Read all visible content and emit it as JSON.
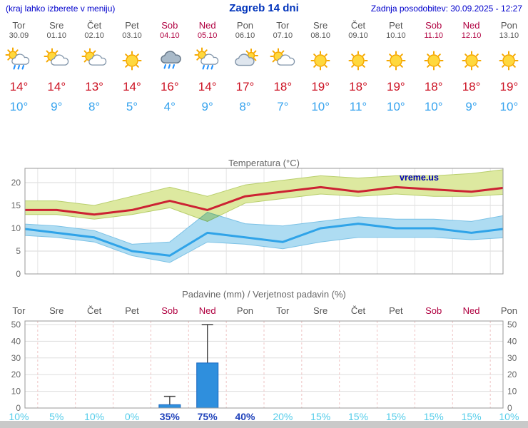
{
  "header": {
    "hint": "(kraj lahko izberete v meniju)",
    "title": "Zagreb 14 dni",
    "updated": "Zadnja posodobitev: 30.09.2025 - 12:27"
  },
  "colors": {
    "header_blue": "#0000cc",
    "title_blue": "#0033bb",
    "weekend_red": "#b00040",
    "weekday_gray": "#555555",
    "high_red": "#cc1122",
    "low_blue": "#36a3ee",
    "bar_blue": "#2f8fdd",
    "prob_dark": "#2244bb",
    "prob_light": "#55cdea"
  },
  "forecast": {
    "days": [
      {
        "name": "Tor",
        "date": "30.09",
        "weekend": false,
        "icon": "rain-sun-icon",
        "high": "14°",
        "low": "10°"
      },
      {
        "name": "Sre",
        "date": "01.10",
        "weekend": false,
        "icon": "sun-cloud-icon",
        "high": "14°",
        "low": "9°"
      },
      {
        "name": "Čet",
        "date": "02.10",
        "weekend": false,
        "icon": "sun-cloud-icon",
        "high": "13°",
        "low": "8°"
      },
      {
        "name": "Pet",
        "date": "03.10",
        "weekend": false,
        "icon": "sun-icon",
        "high": "14°",
        "low": "5°"
      },
      {
        "name": "Sob",
        "date": "04.10",
        "weekend": true,
        "icon": "rain-icon",
        "high": "16°",
        "low": "4°"
      },
      {
        "name": "Ned",
        "date": "05.10",
        "weekend": true,
        "icon": "rain-sun-icon",
        "high": "14°",
        "low": "9°"
      },
      {
        "name": "Pon",
        "date": "06.10",
        "weekend": false,
        "icon": "cloud-sun-icon",
        "high": "17°",
        "low": "8°"
      },
      {
        "name": "Tor",
        "date": "07.10",
        "weekend": false,
        "icon": "sun-cloud-icon",
        "high": "18°",
        "low": "7°"
      },
      {
        "name": "Sre",
        "date": "08.10",
        "weekend": false,
        "icon": "sun-icon",
        "high": "19°",
        "low": "10°"
      },
      {
        "name": "Čet",
        "date": "09.10",
        "weekend": false,
        "icon": "sun-icon",
        "high": "18°",
        "low": "11°"
      },
      {
        "name": "Pet",
        "date": "10.10",
        "weekend": false,
        "icon": "sun-icon",
        "high": "19°",
        "low": "10°"
      },
      {
        "name": "Sob",
        "date": "11.10",
        "weekend": true,
        "icon": "sun-icon",
        "high": "18°",
        "low": "10°"
      },
      {
        "name": "Ned",
        "date": "12.10",
        "weekend": true,
        "icon": "sun-icon",
        "high": "18°",
        "low": "9°"
      },
      {
        "name": "Pon",
        "date": "13.10",
        "weekend": false,
        "icon": "sun-icon",
        "high": "19°",
        "low": "10°"
      }
    ]
  },
  "chart_data": [
    {
      "type": "line",
      "title": "Temperatura (°C)",
      "x": [
        "Tor",
        "Sre",
        "Čet",
        "Pet",
        "Sob",
        "Ned",
        "Pon",
        "Tor",
        "Sre",
        "Čet",
        "Pet",
        "Sob",
        "Ned",
        "Pon"
      ],
      "series": [
        {
          "name": "max temperature",
          "color": "#cc2233",
          "values": [
            14,
            14,
            13,
            14,
            16,
            14,
            17,
            18,
            19,
            18,
            19,
            18.5,
            18,
            19
          ]
        },
        {
          "name": "min temperature",
          "color": "#2fa3e8",
          "values": [
            10,
            9,
            8,
            5,
            4,
            9,
            8,
            7,
            10,
            11,
            10,
            10,
            9,
            10
          ]
        }
      ],
      "bands": [
        {
          "name": "max range",
          "color": "#dde9a0",
          "top": [
            16,
            16,
            15,
            17,
            19,
            17,
            19.5,
            20.5,
            21.5,
            21,
            21.5,
            21.5,
            22,
            23
          ],
          "bottom": [
            13,
            13,
            12,
            13,
            14.5,
            11.5,
            15.5,
            16.5,
            17.5,
            17,
            17.5,
            17,
            17,
            17.5
          ]
        },
        {
          "name": "min range",
          "color": "#aedcf2",
          "top": [
            11,
            10.5,
            9.5,
            6.5,
            7,
            13.5,
            11,
            10.5,
            11.5,
            12.5,
            12,
            12,
            11.5,
            13
          ],
          "bottom": [
            8.5,
            8,
            7,
            4,
            2.5,
            7,
            6.5,
            5.5,
            7,
            8,
            8,
            8,
            7.5,
            8
          ]
        }
      ],
      "yticks": [
        0,
        5,
        10,
        15,
        20
      ],
      "ylim": [
        0,
        23.5
      ],
      "grid": true,
      "legend": "none",
      "watermark": "vreme.us"
    },
    {
      "type": "bar",
      "title": "Padavine (mm) / Verjetnost padavin (%)",
      "categories": [
        "Tor",
        "Sre",
        "Čet",
        "Pet",
        "Sob",
        "Ned",
        "Pon",
        "Tor",
        "Sre",
        "Čet",
        "Pet",
        "Sob",
        "Ned",
        "Pon"
      ],
      "weekend": [
        false,
        false,
        false,
        false,
        true,
        true,
        false,
        false,
        false,
        false,
        false,
        true,
        true,
        false
      ],
      "values_mm": [
        0,
        0,
        0,
        0,
        2,
        27,
        0,
        0,
        0,
        0,
        0,
        0,
        0,
        0
      ],
      "whisker_max_mm": [
        0,
        0,
        0,
        0,
        7,
        50,
        0,
        0,
        0,
        0,
        0,
        0,
        0,
        0
      ],
      "probabilities": [
        "10%",
        "5%",
        "10%",
        "0%",
        "35%",
        "75%",
        "40%",
        "20%",
        "15%",
        "15%",
        "15%",
        "15%",
        "15%",
        "10%"
      ],
      "yticks": [
        0,
        10,
        20,
        30,
        40,
        50
      ],
      "ylim": [
        0,
        52
      ],
      "grid": true,
      "legend": "none"
    }
  ]
}
